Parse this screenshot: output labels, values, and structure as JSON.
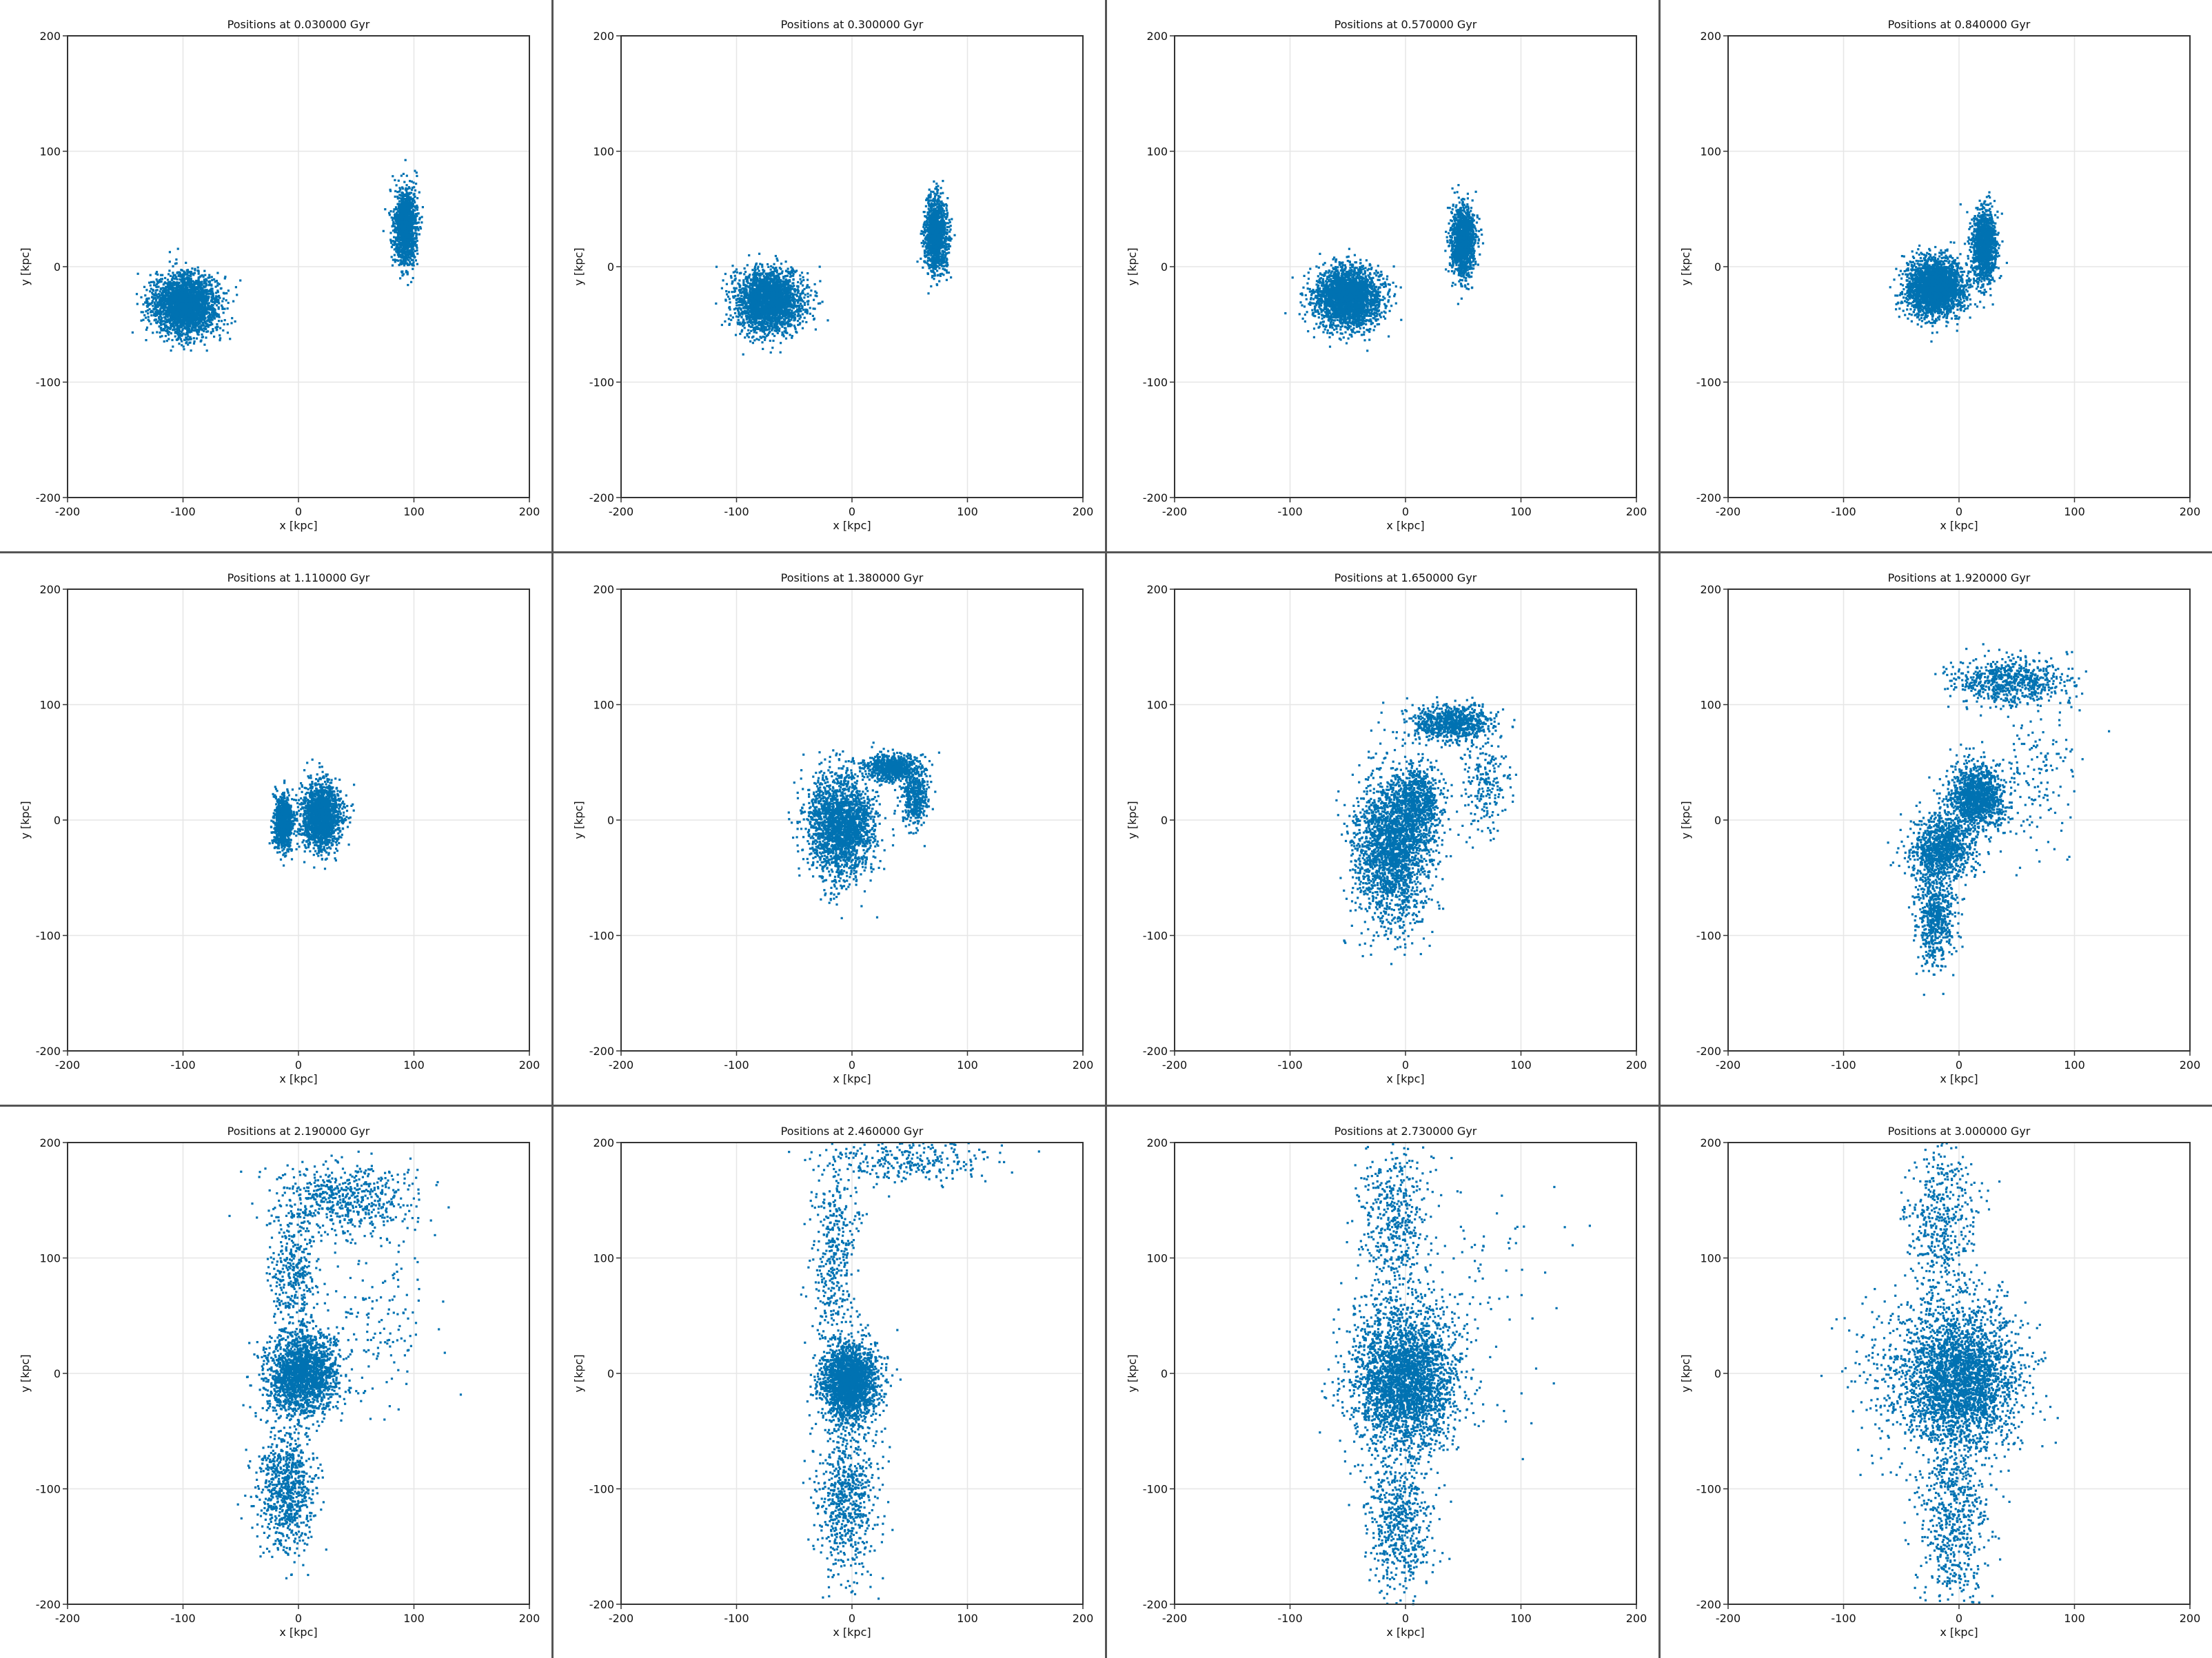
{
  "colors": {
    "points": "#0072B2",
    "grid": "#e6e6e6",
    "frame": "#333333"
  },
  "chart_data": [
    {
      "type": "scatter",
      "title": "Positions at 0.030000 Gyr",
      "xlabel": "x [kpc]",
      "ylabel": "y [kpc]",
      "xlim": [
        -200,
        200
      ],
      "ylim": [
        -200,
        200
      ],
      "xticks": [
        -200,
        -100,
        0,
        100,
        200
      ],
      "yticks": [
        -200,
        -100,
        0,
        100,
        200
      ],
      "grid": true,
      "clusters": [
        {
          "cx": -98,
          "cy": -33,
          "sx": 14,
          "sy": 13,
          "n": 2600
        },
        {
          "cx": 93,
          "cy": 35,
          "sx": 5,
          "sy": 16,
          "n": 1300
        }
      ]
    },
    {
      "type": "scatter",
      "title": "Positions at 0.300000 Gyr",
      "xlabel": "x [kpc]",
      "ylabel": "y [kpc]",
      "xlim": [
        -200,
        200
      ],
      "ylim": [
        -200,
        200
      ],
      "xticks": [
        -200,
        -100,
        0,
        100,
        200
      ],
      "yticks": [
        -200,
        -100,
        0,
        100,
        200
      ],
      "grid": true,
      "clusters": [
        {
          "cx": -72,
          "cy": -30,
          "sx": 14,
          "sy": 13,
          "n": 2600
        },
        {
          "cx": 73,
          "cy": 28,
          "sx": 5,
          "sy": 15,
          "n": 1300
        }
      ]
    },
    {
      "type": "scatter",
      "title": "Positions at 0.570000 Gyr",
      "xlabel": "x [kpc]",
      "ylabel": "y [kpc]",
      "xlim": [
        -200,
        200
      ],
      "ylim": [
        -200,
        200
      ],
      "xticks": [
        -200,
        -100,
        0,
        100,
        200
      ],
      "yticks": [
        -200,
        -100,
        0,
        100,
        200
      ],
      "grid": true,
      "clusters": [
        {
          "cx": -50,
          "cy": -27,
          "sx": 14,
          "sy": 13,
          "n": 2600
        },
        {
          "cx": 50,
          "cy": 22,
          "sx": 5,
          "sy": 15,
          "n": 1300
        }
      ]
    },
    {
      "type": "scatter",
      "title": "Positions at 0.840000 Gyr",
      "xlabel": "x [kpc]",
      "ylabel": "y [kpc]",
      "xlim": [
        -200,
        200
      ],
      "ylim": [
        -200,
        200
      ],
      "xticks": [
        -200,
        -100,
        0,
        100,
        200
      ],
      "yticks": [
        -200,
        -100,
        0,
        100,
        200
      ],
      "grid": true,
      "clusters": [
        {
          "cx": -20,
          "cy": -18,
          "sx": 12,
          "sy": 12,
          "n": 2600
        },
        {
          "cx": 22,
          "cy": 18,
          "sx": 5,
          "sy": 15,
          "n": 1300
        }
      ]
    },
    {
      "type": "scatter",
      "title": "Positions at 1.110000 Gyr",
      "xlabel": "x [kpc]",
      "ylabel": "y [kpc]",
      "xlim": [
        -200,
        200
      ],
      "ylim": [
        -200,
        200
      ],
      "xticks": [
        -200,
        -100,
        0,
        100,
        200
      ],
      "yticks": [
        -200,
        -100,
        0,
        100,
        200
      ],
      "grid": true,
      "clusters": [
        {
          "cx": -13,
          "cy": -2,
          "sx": 4,
          "sy": 12,
          "n": 900
        },
        {
          "cx": 20,
          "cy": 3,
          "sx": 8,
          "sy": 14,
          "n": 1800
        }
      ]
    },
    {
      "type": "scatter",
      "title": "Positions at 1.380000 Gyr",
      "xlabel": "x [kpc]",
      "ylabel": "y [kpc]",
      "xlim": [
        -200,
        200
      ],
      "ylim": [
        -200,
        200
      ],
      "xticks": [
        -200,
        -100,
        0,
        100,
        200
      ],
      "yticks": [
        -200,
        -100,
        0,
        100,
        200
      ],
      "grid": true,
      "clusters": [
        {
          "cx": -10,
          "cy": -5,
          "sx": 14,
          "sy": 22,
          "n": 2200
        },
        {
          "cx": 35,
          "cy": 45,
          "sx": 12,
          "sy": 6,
          "n": 700
        },
        {
          "cx": 55,
          "cy": 20,
          "sx": 6,
          "sy": 12,
          "n": 400
        }
      ]
    },
    {
      "type": "scatter",
      "title": "Positions at 1.650000 Gyr",
      "xlabel": "x [kpc]",
      "ylabel": "y [kpc]",
      "xlim": [
        -200,
        200
      ],
      "ylim": [
        -200,
        200
      ],
      "xticks": [
        -200,
        -100,
        0,
        100,
        200
      ],
      "yticks": [
        -200,
        -100,
        0,
        100,
        200
      ],
      "grid": true,
      "clusters": [
        {
          "cx": -12,
          "cy": -25,
          "sx": 16,
          "sy": 32,
          "n": 2200
        },
        {
          "cx": 40,
          "cy": 85,
          "sx": 18,
          "sy": 8,
          "n": 800
        },
        {
          "cx": 10,
          "cy": 15,
          "sx": 10,
          "sy": 18,
          "n": 700
        },
        {
          "cx": 70,
          "cy": 30,
          "sx": 10,
          "sy": 20,
          "n": 200
        }
      ]
    },
    {
      "type": "scatter",
      "title": "Positions at 1.920000 Gyr",
      "xlabel": "x [kpc]",
      "ylabel": "y [kpc]",
      "xlim": [
        -200,
        200
      ],
      "ylim": [
        -200,
        200
      ],
      "xticks": [
        -200,
        -100,
        0,
        100,
        200
      ],
      "yticks": [
        -200,
        -100,
        0,
        100,
        200
      ],
      "grid": true,
      "clusters": [
        {
          "cx": 15,
          "cy": 20,
          "sx": 12,
          "sy": 14,
          "n": 1200
        },
        {
          "cx": -15,
          "cy": -25,
          "sx": 14,
          "sy": 14,
          "n": 1000
        },
        {
          "cx": -20,
          "cy": -85,
          "sx": 8,
          "sy": 20,
          "n": 600
        },
        {
          "cx": 45,
          "cy": 120,
          "sx": 25,
          "sy": 10,
          "n": 700
        },
        {
          "cx": 70,
          "cy": 40,
          "sx": 20,
          "sy": 30,
          "n": 150
        }
      ]
    },
    {
      "type": "scatter",
      "title": "Positions at 2.190000 Gyr",
      "xlabel": "x [kpc]",
      "ylabel": "y [kpc]",
      "xlim": [
        -200,
        200
      ],
      "ylim": [
        -200,
        200
      ],
      "xticks": [
        -200,
        -100,
        0,
        100,
        200
      ],
      "yticks": [
        -200,
        -100,
        0,
        100,
        200
      ],
      "grid": true,
      "clusters": [
        {
          "cx": 3,
          "cy": 0,
          "sx": 15,
          "sy": 18,
          "n": 2000
        },
        {
          "cx": -10,
          "cy": -100,
          "sx": 12,
          "sy": 25,
          "n": 800
        },
        {
          "cx": 40,
          "cy": 150,
          "sx": 30,
          "sy": 15,
          "n": 600
        },
        {
          "cx": -5,
          "cy": 90,
          "sx": 10,
          "sy": 25,
          "n": 350
        },
        {
          "cx": 70,
          "cy": 40,
          "sx": 25,
          "sy": 35,
          "n": 150
        }
      ]
    },
    {
      "type": "scatter",
      "title": "Positions at 2.460000 Gyr",
      "xlabel": "x [kpc]",
      "ylabel": "y [kpc]",
      "xlim": [
        -200,
        200
      ],
      "ylim": [
        -200,
        200
      ],
      "xticks": [
        -200,
        -100,
        0,
        100,
        200
      ],
      "yticks": [
        -200,
        -100,
        0,
        100,
        200
      ],
      "grid": true,
      "clusters": [
        {
          "cx": -2,
          "cy": -8,
          "sx": 12,
          "sy": 16,
          "n": 2200
        },
        {
          "cx": -5,
          "cy": -110,
          "sx": 14,
          "sy": 35,
          "n": 700
        },
        {
          "cx": -15,
          "cy": 100,
          "sx": 10,
          "sy": 40,
          "n": 400
        },
        {
          "cx": 50,
          "cy": 185,
          "sx": 35,
          "sy": 10,
          "n": 300
        }
      ]
    },
    {
      "type": "scatter",
      "title": "Positions at 2.730000 Gyr",
      "xlabel": "x [kpc]",
      "ylabel": "y [kpc]",
      "xlim": [
        -200,
        200
      ],
      "ylim": [
        -200,
        200
      ],
      "xticks": [
        -200,
        -100,
        0,
        100,
        200
      ],
      "yticks": [
        -200,
        -100,
        0,
        100,
        200
      ],
      "grid": true,
      "clusters": [
        {
          "cx": 0,
          "cy": -5,
          "sx": 22,
          "sy": 30,
          "n": 3000
        },
        {
          "cx": -5,
          "cy": -130,
          "sx": 14,
          "sy": 35,
          "n": 600
        },
        {
          "cx": -10,
          "cy": 130,
          "sx": 14,
          "sy": 40,
          "n": 500
        },
        {
          "cx": 60,
          "cy": 80,
          "sx": 40,
          "sy": 60,
          "n": 100
        }
      ]
    },
    {
      "type": "scatter",
      "title": "Positions at 3.000000 Gyr",
      "xlabel": "x [kpc]",
      "ylabel": "y [kpc]",
      "xlim": [
        -200,
        200
      ],
      "ylim": [
        -200,
        200
      ],
      "xticks": [
        -200,
        -100,
        0,
        100,
        200
      ],
      "yticks": [
        -200,
        -100,
        0,
        100,
        200
      ],
      "grid": true,
      "clusters": [
        {
          "cx": 0,
          "cy": -5,
          "sx": 25,
          "sy": 30,
          "n": 3000
        },
        {
          "cx": -5,
          "cy": -130,
          "sx": 15,
          "sy": 35,
          "n": 600
        },
        {
          "cx": -15,
          "cy": 130,
          "sx": 15,
          "sy": 40,
          "n": 500
        },
        {
          "cx": -60,
          "cy": 0,
          "sx": 20,
          "sy": 40,
          "n": 150
        }
      ]
    }
  ]
}
